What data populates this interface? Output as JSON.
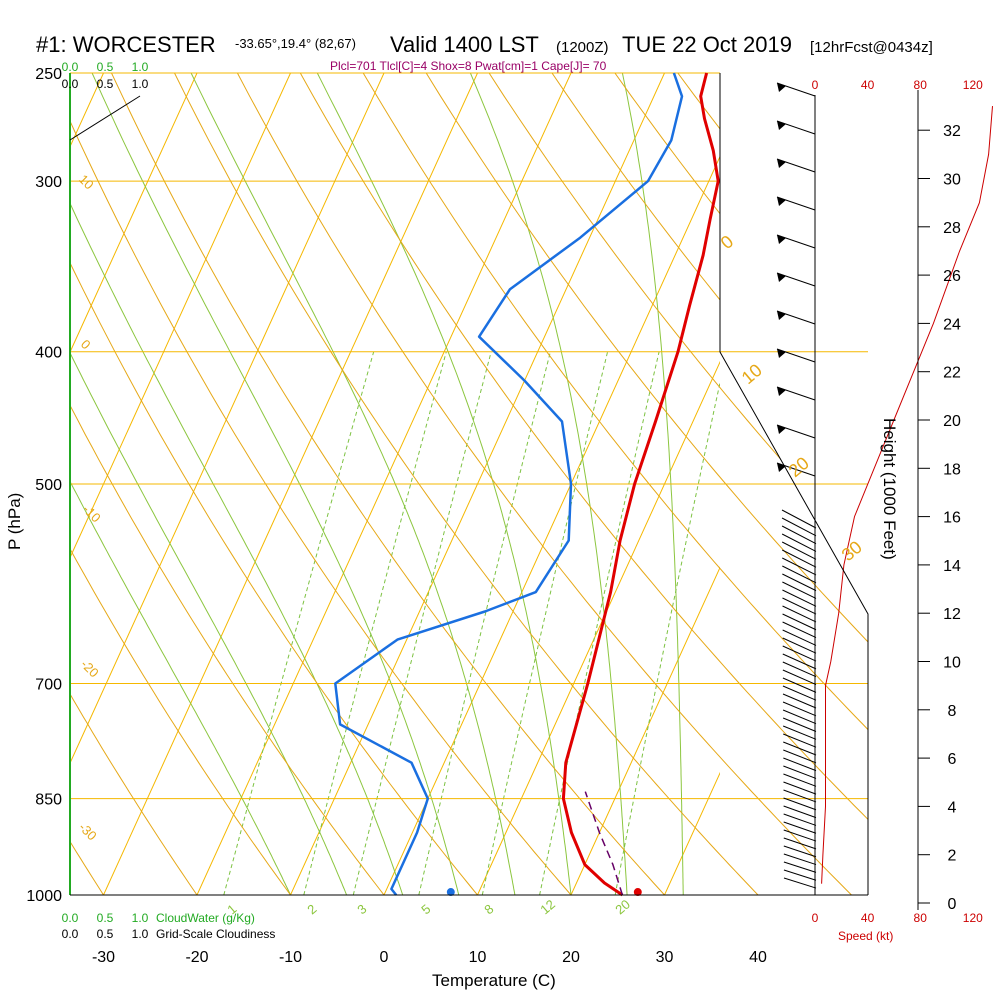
{
  "title": {
    "station": "#1: WORCESTER",
    "coords": "-33.65°,19.4° (82,67)",
    "valid": "Valid 1400 LST",
    "zulu": "(1200Z)",
    "date": "TUE 22 Oct 2019",
    "forecast": "[12hrFcst@0434z]"
  },
  "subtitle": "Plcl=701 Tlcl[C]=4 Shox=8 Pwat[cm]=1 Cape[J]= 70",
  "colors": {
    "isobar": "#f5b800",
    "dry_adiabat": "#e6a817",
    "moist_adiabat": "#8cc63f",
    "mixing_ratio": "#7dc242",
    "temperature": "#e00000",
    "dewpoint": "#1a6fe0",
    "parcel": "#660066",
    "speed": "#cc0000",
    "cloud": "#22aa22"
  },
  "chart_data": {
    "type": "line",
    "title": "#1: WORCESTER -33.65°,19.4° (82,67) Valid 1400 LST (1200Z) TUE 22 Oct 2019 [12hrFcst@0434z]",
    "xlabel": "Temperature (C)",
    "ylabel": "P (hPa)",
    "y2label": "Height (1000 Feet)",
    "x_ticks": [
      "-30",
      "-20",
      "-10",
      "0",
      "10",
      "20",
      "30",
      "40"
    ],
    "x_tick_values": [
      -30,
      -20,
      -10,
      0,
      10,
      20,
      30,
      40
    ],
    "pressure_ticks": [
      "250",
      "300",
      "400",
      "500",
      "700",
      "850",
      "1000"
    ],
    "pressure_tick_values": [
      250,
      300,
      400,
      500,
      700,
      850,
      1000
    ],
    "height_ticks": [
      "0",
      "2",
      "4",
      "6",
      "8",
      "10",
      "12",
      "14",
      "16",
      "18",
      "20",
      "22",
      "24",
      "26",
      "28",
      "30",
      "32"
    ],
    "speed_ticks": [
      "0",
      "40",
      "80",
      "120"
    ],
    "speed_label": "Speed (kt)",
    "cloud_scale_top": [
      "0.0",
      "0.5",
      "1.0"
    ],
    "cloud_scale_bottom": [
      "0.0",
      "0.5",
      "1.0"
    ],
    "cloudwater_label": "CloudWater (g/Kg)",
    "cloudiness_label": "Grid-Scale Cloudiness",
    "dry_adiabat_labels": [
      "10",
      "0",
      "-10",
      "-20",
      "-30"
    ],
    "moist_adiabat_labels": [
      "0",
      "10",
      "20",
      "30"
    ],
    "mixing_ratio_labels": [
      "1",
      "2",
      "3",
      "5",
      "8",
      "12",
      "20"
    ],
    "series": [
      {
        "name": "Temperature",
        "x": [
          25.5,
          23,
          20,
          17,
          14.5,
          13,
          11.5,
          9.5,
          8,
          6.8,
          6,
          5,
          4,
          3,
          2,
          1,
          -1,
          -3.5,
          -5,
          -5.5
        ],
        "y": [
          1000,
          980,
          950,
          900,
          850,
          800,
          700,
          600,
          550,
          500,
          450,
          400,
          370,
          340,
          320,
          300,
          285,
          270,
          260,
          250
        ]
      },
      {
        "name": "Dewpoint",
        "x": [
          1.3,
          0.5,
          0.5,
          0.5,
          0,
          -3.5,
          -13,
          -15.5,
          -11,
          -3,
          1.5,
          2.5,
          0,
          -4,
          -10,
          -17,
          -16,
          -11,
          -6.5,
          -6,
          -7,
          -9
        ],
        "y": [
          1000,
          990,
          950,
          900,
          850,
          800,
          750,
          700,
          650,
          620,
          600,
          550,
          500,
          450,
          420,
          390,
          360,
          330,
          300,
          280,
          260,
          250
        ]
      },
      {
        "name": "Parcel",
        "x": [
          25.5,
          23,
          20,
          16.5
        ],
        "y": [
          1000,
          950,
          900,
          840
        ]
      }
    ],
    "surface_points": [
      {
        "name": "Surface dewpoint",
        "x": 7,
        "y": 995
      },
      {
        "name": "Surface temperature",
        "x": 27,
        "y": 995
      }
    ],
    "wind_speed_profile": {
      "speed_kt": [
        5,
        6,
        8,
        8,
        8,
        8,
        12,
        18,
        22,
        30,
        60,
        90,
        110,
        125,
        132,
        135
      ],
      "height_kft": [
        0.8,
        2,
        4,
        6,
        8,
        9,
        10,
        12,
        14,
        16,
        20,
        24,
        27,
        29,
        31,
        33
      ]
    }
  }
}
